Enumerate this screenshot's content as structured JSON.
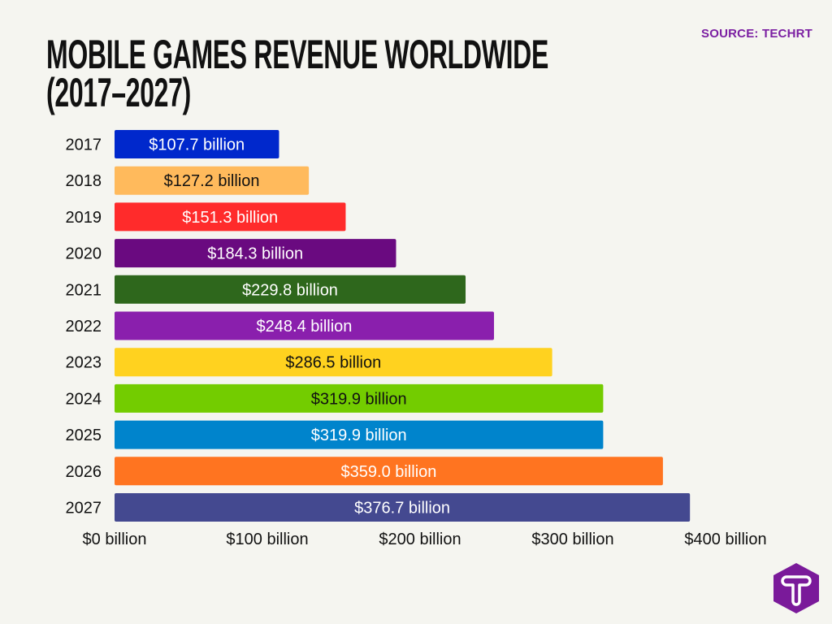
{
  "source": "SOURCE: TECHRT",
  "title_line1": "MOBILE GAMES REVENUE WORLDWIDE",
  "title_line2": "(2017–2027)",
  "logo_text": "T",
  "chart_data": {
    "type": "bar",
    "orientation": "horizontal",
    "title": "MOBILE GAMES REVENUE WORLDWIDE (2017–2027)",
    "categories": [
      "2017",
      "2018",
      "2019",
      "2020",
      "2021",
      "2022",
      "2023",
      "2024",
      "2025",
      "2026",
      "2027"
    ],
    "values": [
      107.7,
      127.2,
      151.3,
      184.3,
      229.8,
      248.4,
      286.5,
      319.9,
      319.9,
      359.0,
      376.7
    ],
    "data_labels": [
      "$107.7 billion",
      "$127.2 billion",
      "$151.3 billion",
      "$184.3 billion",
      "$229.8 billion",
      "$248.4 billion",
      "$286.5 billion",
      "$319.9 billion",
      "$319.9 billion",
      "$359.0 billion",
      "$376.7 billion"
    ],
    "colors": [
      "#0028cc",
      "#ffba5c",
      "#ff2b2b",
      "#6a0a80",
      "#2e671c",
      "#8a1fad",
      "#ffd21f",
      "#73cc00",
      "#0084cc",
      "#ff7420",
      "#444990"
    ],
    "label_colors": [
      "#ffffff",
      "#111111",
      "#ffffff",
      "#ffffff",
      "#ffffff",
      "#ffffff",
      "#111111",
      "#111111",
      "#ffffff",
      "#ffffff",
      "#ffffff"
    ],
    "xlim": [
      0,
      400
    ],
    "x_ticks": [
      0,
      100,
      200,
      300,
      400
    ],
    "x_tick_labels": [
      "$0 billion",
      "$100 billion",
      "$200 billion",
      "$300 billion",
      "$400 billion"
    ],
    "xlabel": "",
    "ylabel": "",
    "grid": false,
    "legend": "none"
  },
  "colors": {
    "background": "#f5f5f0",
    "accent": "#7b1fa2"
  }
}
